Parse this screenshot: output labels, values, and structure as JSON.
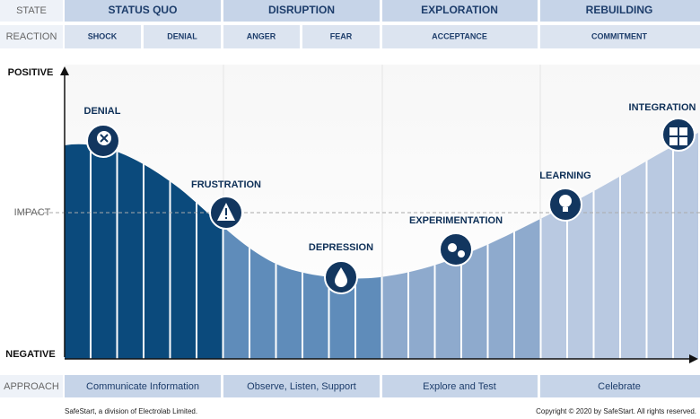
{
  "header": {
    "state_label": "STATE",
    "reaction_label": "REACTION",
    "states": [
      "STATUS QUO",
      "DISRUPTION",
      "EXPLORATION",
      "REBUILDING"
    ],
    "reactions": [
      "SHOCK",
      "DENIAL",
      "ANGER",
      "FEAR",
      "ACCEPTANCE",
      "COMMITMENT"
    ]
  },
  "axis": {
    "top": "POSITIVE",
    "middle": "IMPACT",
    "bottom": "NEGATIVE"
  },
  "stages": [
    "DENIAL",
    "FRUSTRATION",
    "DEPRESSION",
    "EXPERIMENTATION",
    "LEARNING",
    "INTEGRATION"
  ],
  "approach": {
    "label": "APPROACH",
    "items": [
      "Communicate Information",
      "Observe, Listen, Support",
      "Explore and Test",
      "Celebrate"
    ]
  },
  "footer": {
    "left": "SafeStart, a division of Electrolab Limited.",
    "right": "Copyright © 2020 by SafeStart. All rights reserved."
  }
}
